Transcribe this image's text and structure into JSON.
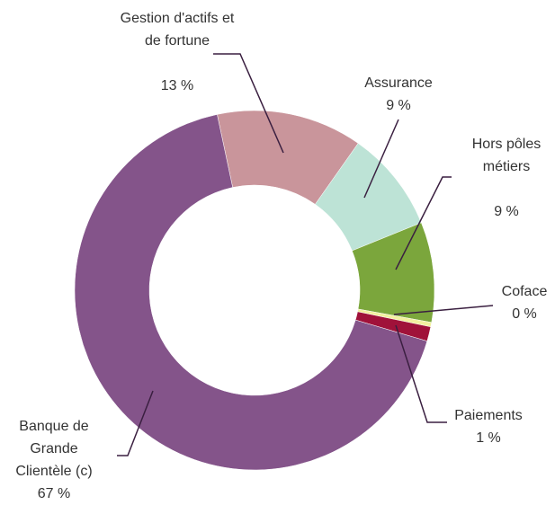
{
  "chart_data": {
    "type": "donut",
    "categories": [
      "Gestion d'actifs et de fortune",
      "Assurance",
      "Hors pôles métiers",
      "Coface",
      "Paiements",
      "Banque de Grande Clientèle (c)"
    ],
    "values": [
      13.1,
      9.1,
      9.0,
      0.4,
      1.3,
      67.1
    ],
    "value_labels": [
      "13 %",
      "9 %",
      "9 %",
      "0 %",
      "1 %",
      "67 %"
    ],
    "colors": [
      "#c9959b",
      "#bde3d6",
      "#7ba63c",
      "#f2f0a0",
      "#a0123a",
      "#84548a"
    ]
  }
}
